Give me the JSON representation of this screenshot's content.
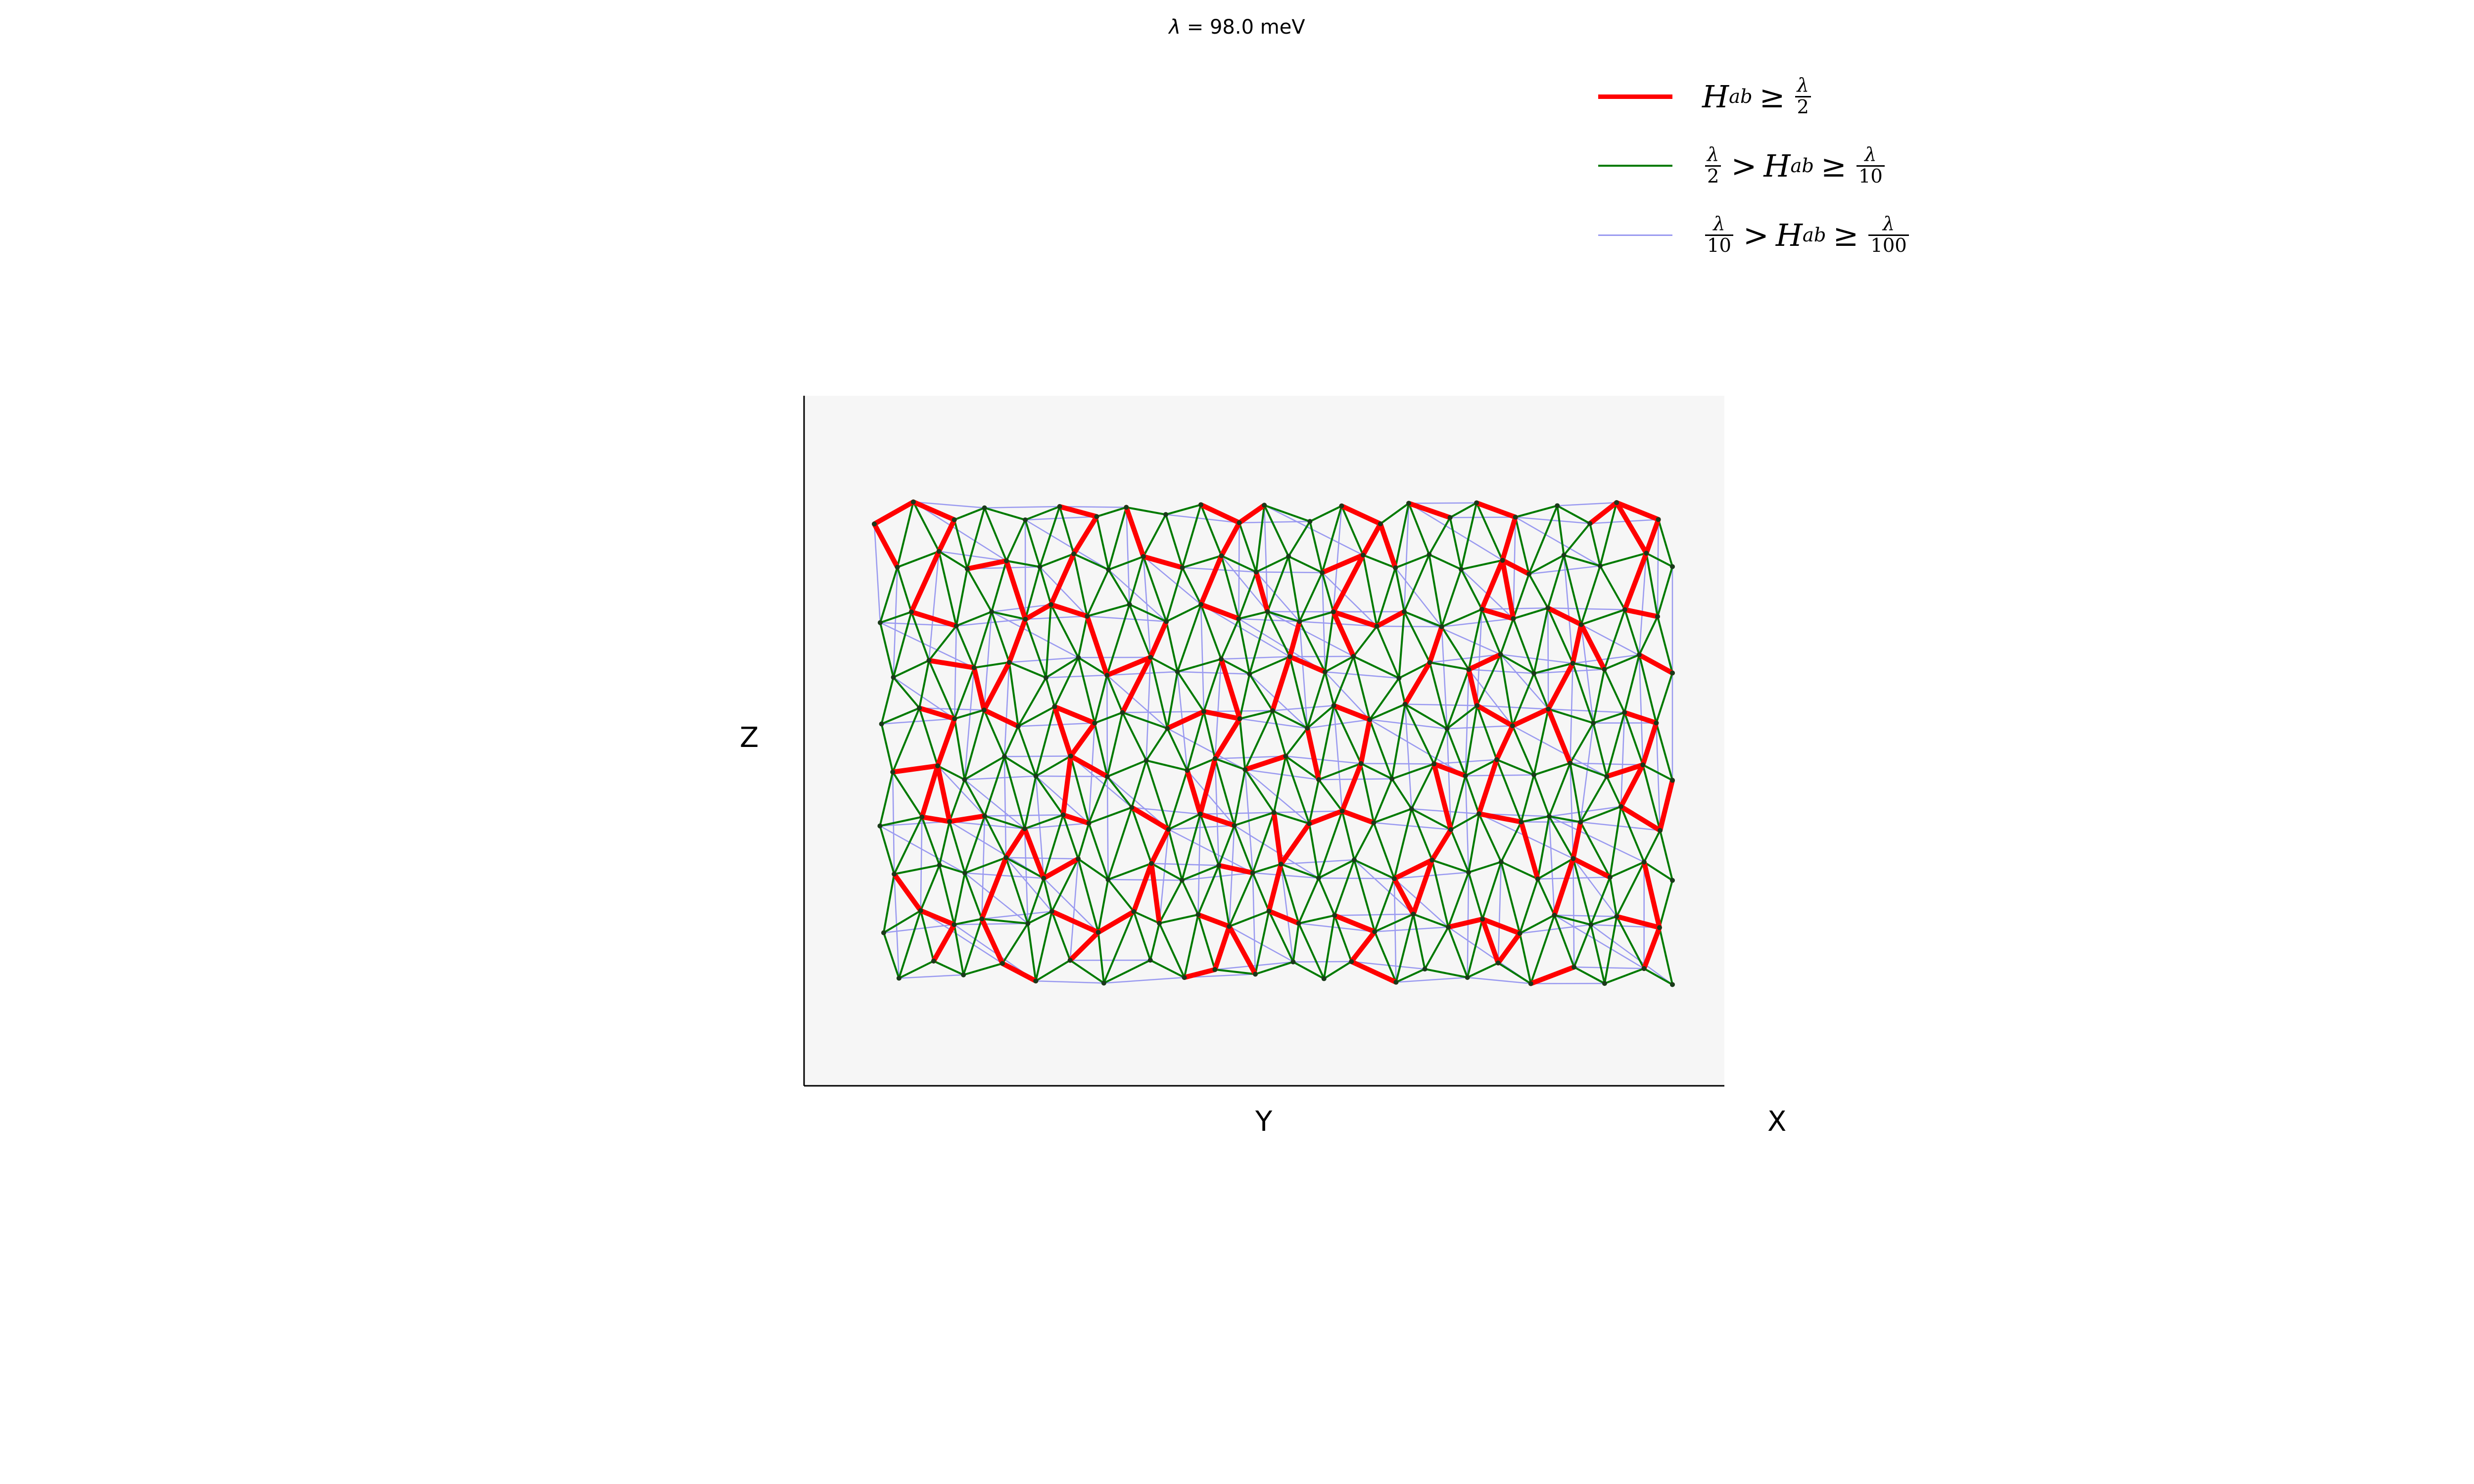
{
  "title": {
    "symbol": "λ",
    "eq": "=",
    "value": "98.0 meV"
  },
  "legend": [
    {
      "color": "#ff0000",
      "lhs_num": "",
      "lhs_den": "",
      "op1": "",
      "sym": "H",
      "sub": "ab",
      "op2": "≥",
      "rhs_num": "λ",
      "rhs_den": "2"
    },
    {
      "color": "#007a00",
      "lhs_num": "λ",
      "lhs_den": "2",
      "op1": ">",
      "sym": "H",
      "sub": "ab",
      "op2": "≥",
      "rhs_num": "λ",
      "rhs_den": "10"
    },
    {
      "color": "#9a9af0",
      "lhs_num": "λ",
      "lhs_den": "10",
      "op1": ">",
      "sym": "H",
      "sub": "ab",
      "op2": "≥",
      "rhs_num": "λ",
      "rhs_den": "100"
    }
  ],
  "axes": {
    "x": "X",
    "y": "Y",
    "z": "Z"
  },
  "colors": {
    "strong": "#ff0000",
    "medium": "#007a00",
    "weak": "#9a9af0",
    "pane": "#f6f6f6",
    "node": "#1a3a1a"
  }
}
